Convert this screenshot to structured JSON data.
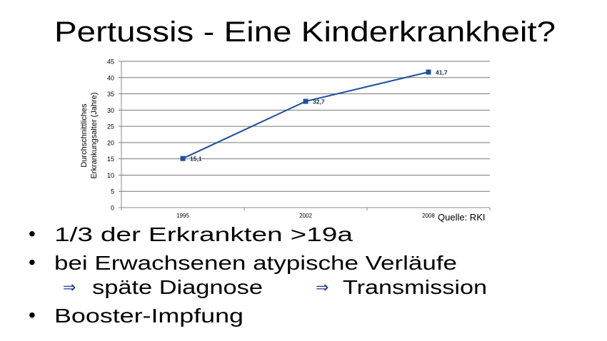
{
  "slide": {
    "title": "Pertussis - Eine Kinderkrankheit?",
    "source": "Quelle: RKI",
    "bullets": [
      {
        "text": "1/3 der Erkrankten >19a"
      },
      {
        "text": "bei Erwachsenen atypische Verläufe"
      },
      {
        "text": "Booster-Impfung"
      }
    ],
    "sub_items": [
      {
        "icon": "double-arrow-right-icon",
        "text": "späte Diagnose"
      },
      {
        "icon": "double-arrow-right-icon",
        "text": "Transmission"
      }
    ],
    "arrow_color": "#1f3a93",
    "bullet_char": "•",
    "arrow_char": "⇒"
  },
  "chart_data": {
    "type": "line",
    "categories": [
      "1995",
      "2002",
      "2008"
    ],
    "series": [
      {
        "values": [
          15.1,
          32.7,
          41.7
        ],
        "labels": [
          "15,1",
          "32,7",
          "41,7"
        ],
        "color": "#1f4e9c"
      }
    ],
    "ylabel": "Durchschnittliches Erkrankungsalter (Jahre)",
    "ylabel_lines": [
      "Durchschnittliches",
      "Erkrankungsalter (Jahre)"
    ],
    "xlabel": "",
    "ylim": [
      0,
      45
    ],
    "yticks": [
      "0",
      "5",
      "10",
      "15",
      "20",
      "25",
      "30",
      "35",
      "40",
      "45"
    ],
    "grid": true,
    "legend": "none",
    "marker": "square"
  }
}
